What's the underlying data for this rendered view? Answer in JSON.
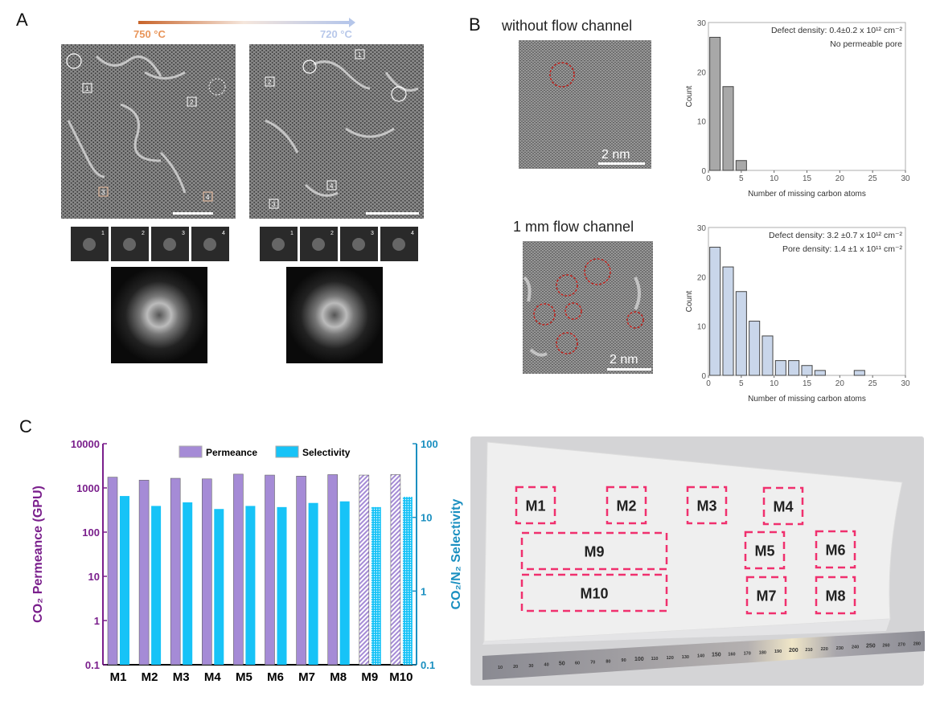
{
  "panels": {
    "a": {
      "label": "A",
      "temp_start": "750 °C",
      "temp_end": "720 °C",
      "temp_start_color": "#e8955a",
      "temp_end_color": "#b8c8ea",
      "left_boxes": [
        "1",
        "2",
        "3",
        "4"
      ],
      "right_boxes": [
        "1",
        "2",
        "3",
        "4"
      ],
      "left_fft": [
        "1",
        "2",
        "3",
        "4"
      ],
      "right_fft": [
        "1",
        "2",
        "3",
        "4"
      ]
    },
    "b": {
      "label": "B",
      "title_top": "without flow channel",
      "title_bottom": "1 mm flow channel",
      "scale_top": "2 nm",
      "scale_bottom": "2 nm"
    },
    "c": {
      "label": "C",
      "regions": [
        "M1",
        "M2",
        "M3",
        "M4",
        "M5",
        "M6",
        "M7",
        "M8",
        "M9",
        "M10"
      ],
      "ruler_numbers": [
        "10",
        "20",
        "30",
        "40",
        "50",
        "60",
        "70",
        "80",
        "90",
        "100",
        "110",
        "120",
        "130",
        "140",
        "150",
        "160",
        "170",
        "180",
        "190",
        "200",
        "210",
        "220",
        "230",
        "240",
        "250",
        "260",
        "270",
        "280"
      ],
      "highlight_color": "#f0306e"
    }
  },
  "chart_data": [
    {
      "type": "bar",
      "id": "hist-top",
      "xlabel": "Number of missing carbon atoms",
      "ylabel": "Count",
      "xlim": [
        0,
        30
      ],
      "ylim": [
        0,
        30
      ],
      "xticks": [
        "0",
        "5",
        "10",
        "15",
        "20",
        "25",
        "30"
      ],
      "yticks": [
        "0",
        "10",
        "20",
        "30"
      ],
      "bin_centers": [
        1,
        3,
        5
      ],
      "values": [
        27,
        17,
        2
      ],
      "annotations": [
        "Defect density: 0.4±0.2 x 10¹² cm⁻²",
        "No permeable pore"
      ],
      "bar_color": "#a8a8a8"
    },
    {
      "type": "bar",
      "id": "hist-bottom",
      "xlabel": "Number of missing carbon atoms",
      "ylabel": "Count",
      "xlim": [
        0,
        30
      ],
      "ylim": [
        0,
        30
      ],
      "xticks": [
        "0",
        "5",
        "10",
        "15",
        "20",
        "25",
        "30"
      ],
      "yticks": [
        "0",
        "10",
        "20",
        "30"
      ],
      "bin_centers": [
        1,
        3,
        5,
        7,
        9,
        11,
        13,
        15,
        17,
        19,
        21,
        23
      ],
      "values": [
        26,
        22,
        17,
        11,
        8,
        3,
        3,
        2,
        1,
        0,
        0,
        1
      ],
      "annotations": [
        "Defect density: 3.2 ±0.7 x 10¹² cm⁻²",
        "Pore density: 1.4 ±1 x 10¹¹ cm⁻²"
      ],
      "bar_color": "#c9d6ea"
    },
    {
      "type": "bar",
      "id": "membrane-performance",
      "scale": "log",
      "categories": [
        "M1",
        "M2",
        "M3",
        "M4",
        "M5",
        "M6",
        "M7",
        "M8",
        "M9",
        "M10"
      ],
      "ylabel_left": "CO₂ Permeance (GPU)",
      "ylabel_right": "CO₂/N₂ Selectivity",
      "ylim_left": [
        0.1,
        10000
      ],
      "ylim_right": [
        0.1,
        100
      ],
      "yticks_left": [
        "0.1",
        "1",
        "10",
        "100",
        "1000",
        "10000"
      ],
      "yticks_right": [
        "0.1",
        "1",
        "10",
        "100"
      ],
      "legend": [
        "Permeance",
        "Selectivity"
      ],
      "legend_position": "top-center",
      "series": [
        {
          "name": "Permeance",
          "axis": "left",
          "color": "#a58bd6",
          "values": [
            1750,
            1500,
            1650,
            1600,
            2050,
            1950,
            1850,
            2000,
            1950,
            2000
          ]
        },
        {
          "name": "Selectivity",
          "axis": "right",
          "color": "#17c3f7",
          "values": [
            19.5,
            14.3,
            16,
            13,
            14.3,
            13.8,
            15.7,
            16.5,
            13.8,
            19
          ]
        }
      ],
      "hatched_categories": [
        "M9",
        "M10"
      ],
      "left_axis_color": "#7a1f8c",
      "right_axis_color": "#1a8fc0"
    }
  ]
}
